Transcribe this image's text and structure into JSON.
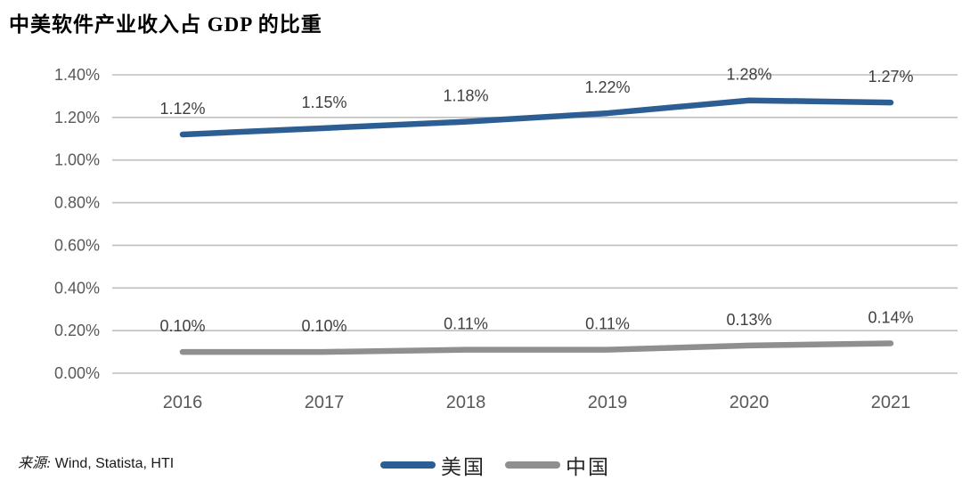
{
  "title": "中美软件产业收入占 GDP 的比重",
  "source": {
    "prefix": "来源:",
    "text": " Wind, Statista, HTI"
  },
  "legend": [
    {
      "name": "美国",
      "color": "#2d5e93"
    },
    {
      "name": "中国",
      "color": "#8f8f8f"
    }
  ],
  "colors": {
    "us_line": "#2d5e93",
    "cn_line": "#8f8f8f",
    "gridline": "#bfbfbf",
    "axis_text": "#595959",
    "label_text": "#3f3f3f"
  },
  "chart_data": {
    "type": "line",
    "title": "中美软件产业收入占 GDP 的比重",
    "categories": [
      "2016",
      "2017",
      "2018",
      "2019",
      "2020",
      "2021"
    ],
    "series": [
      {
        "name": "美国",
        "color": "#2d5e93",
        "values": [
          1.12,
          1.15,
          1.18,
          1.22,
          1.28,
          1.27
        ],
        "labels": [
          "1.12%",
          "1.15%",
          "1.18%",
          "1.22%",
          "1.28%",
          "1.27%"
        ]
      },
      {
        "name": "中国",
        "color": "#8f8f8f",
        "values": [
          0.1,
          0.1,
          0.11,
          0.11,
          0.13,
          0.14
        ],
        "labels": [
          "0.10%",
          "0.10%",
          "0.11%",
          "0.11%",
          "0.13%",
          "0.14%"
        ]
      }
    ],
    "xlabel": "",
    "ylabel": "",
    "ylim": [
      0,
      1.4
    ],
    "y_ticks": [
      "1.40%",
      "1.20%",
      "1.00%",
      "0.80%",
      "0.60%",
      "0.40%",
      "0.20%",
      "0.00%"
    ],
    "grid": "horizontal",
    "legend_position": "bottom",
    "unit": "%"
  }
}
